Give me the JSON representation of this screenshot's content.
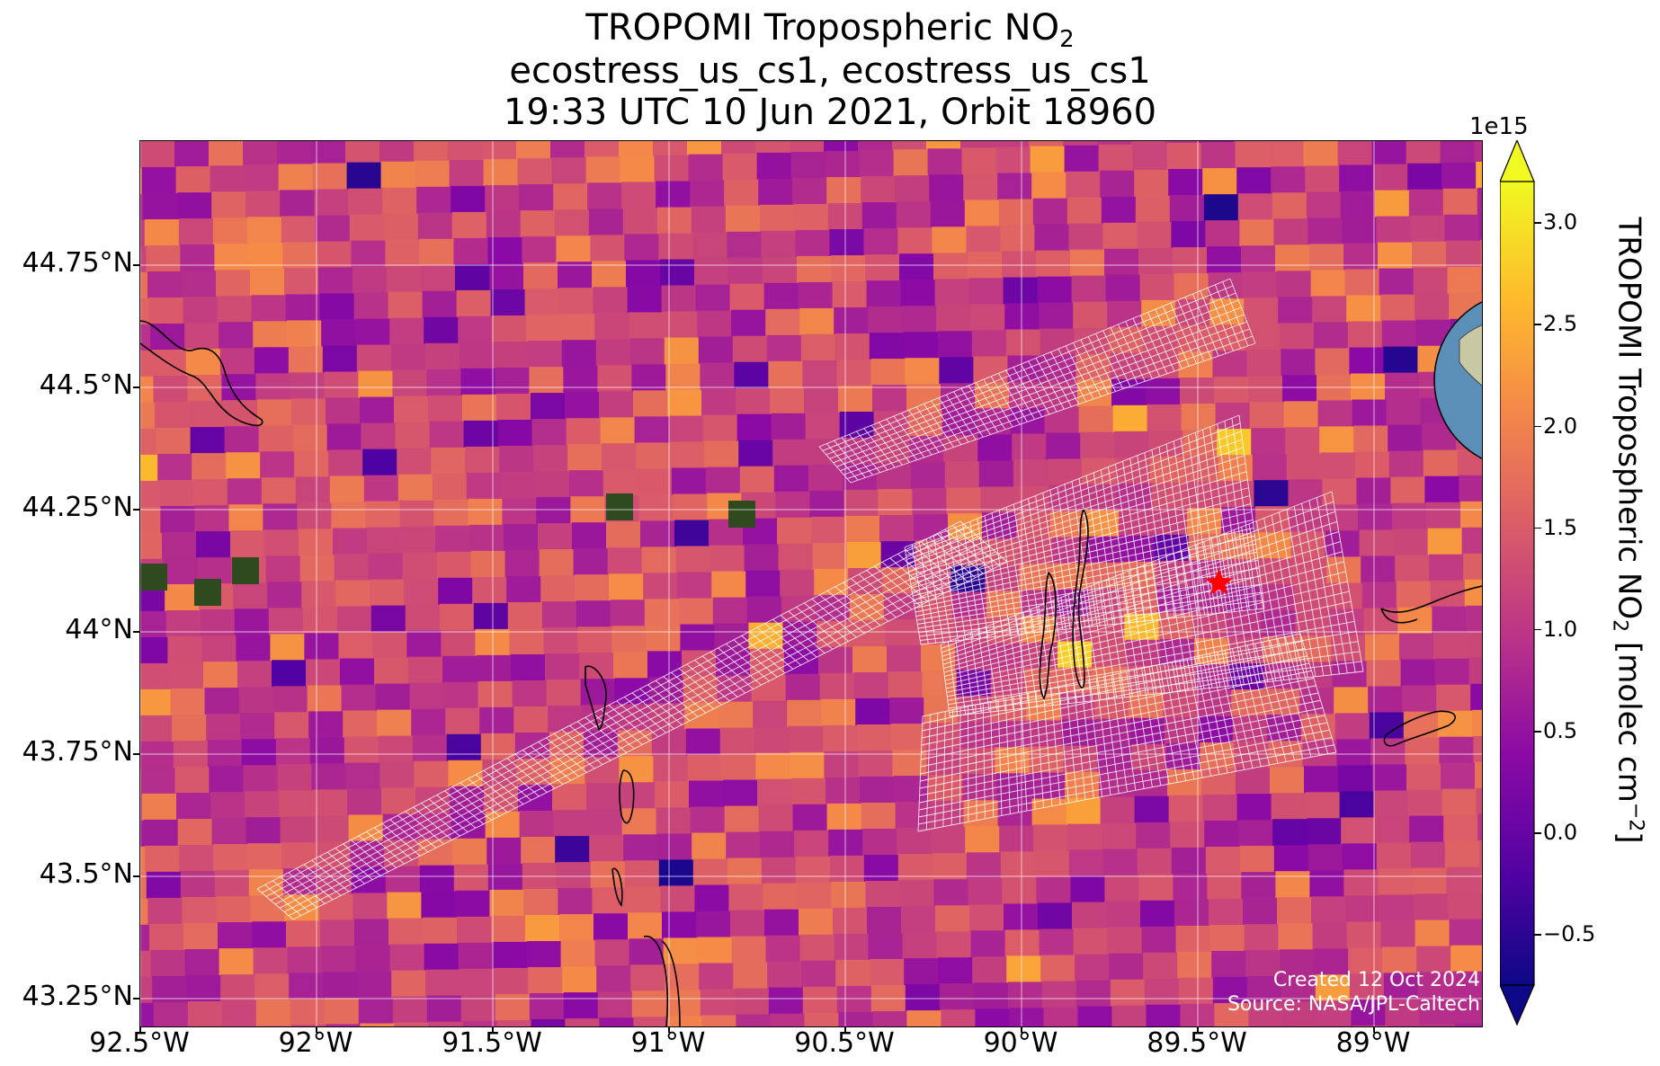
{
  "title": {
    "line1_prefix": "TROPOMI Tropospheric NO",
    "line1_subscript": "2",
    "line2": "ecostress_us_cs1, ecostress_us_cs1",
    "line3": "19:33 UTC 10 Jun 2021, Orbit 18960"
  },
  "map": {
    "lon_ticks": [
      "92.5°W",
      "92°W",
      "91.5°W",
      "91°W",
      "90.5°W",
      "90°W",
      "89.5°W",
      "89°W"
    ],
    "lat_ticks": [
      "44.75°N",
      "44.5°N",
      "44.25°N",
      "44°N",
      "43.75°N",
      "43.5°N",
      "43.25°N"
    ],
    "lon_range": [
      -92.5,
      -88.7
    ],
    "lat_range": [
      43.23,
      44.98
    ],
    "site_marker": {
      "lon": -89.44,
      "lat": 44.1,
      "symbol": "star",
      "color": "#ff0000"
    },
    "pixel_colormap": "plasma",
    "overlay_color": "#ffffff",
    "coastline_color": "#000000"
  },
  "colorbar": {
    "label_prefix": "TROPOMI Tropospheric NO",
    "label_subscript": "2",
    "label_units": " [molec cm",
    "label_exponent": "−2",
    "label_close": "]",
    "multiplier": "1e15",
    "ticks": [
      "3.0",
      "2.5",
      "2.0",
      "1.5",
      "1.0",
      "0.5",
      "0.0",
      "−0.5"
    ],
    "vmin": -0.75,
    "vmax": 3.2,
    "extend": "both",
    "colormap": "plasma"
  },
  "inset": {
    "type": "orthographic-globe",
    "marker_color": "#ff0000"
  },
  "credit": {
    "line1": "Created 12 Oct 2024",
    "line2": "Source: NASA/JPL-Caltech"
  }
}
